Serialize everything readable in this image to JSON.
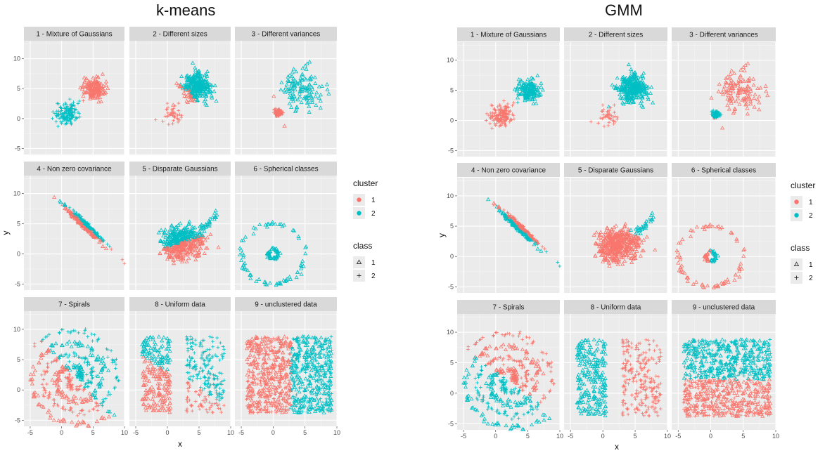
{
  "titles": {
    "left": "k-means",
    "right": "GMM"
  },
  "colors": {
    "cluster1": "#F8766D",
    "cluster2": "#00BFC4",
    "panel": "#EBEBEB",
    "strip": "#D9D9D9",
    "grid": "#FFFFFF"
  },
  "chart_data": [
    {
      "type": "scatter",
      "title": "k-means",
      "xlabel": "x",
      "ylabel": "y",
      "xlim": [
        -6,
        10
      ],
      "ylim": [
        -6,
        13
      ],
      "x_ticks": [
        "-5",
        "0",
        "5",
        "10"
      ],
      "y_ticks": [
        "-5",
        "0",
        "5",
        "10"
      ],
      "panels": [
        {
          "label": "1 - Mixture of Gaussians",
          "generator": "mixture",
          "assign": "kmeans"
        },
        {
          "label": "2 - Different sizes",
          "generator": "sizes",
          "assign": "kmeans"
        },
        {
          "label": "3 - Different variances",
          "generator": "variances",
          "assign": "kmeans"
        },
        {
          "label": "4 - Non zero covariance",
          "generator": "covariance",
          "assign": "kmeans"
        },
        {
          "label": "5 - Disparate Gaussians",
          "generator": "disparate",
          "assign": "kmeans"
        },
        {
          "label": "6 - Spherical classes",
          "generator": "spherical",
          "assign": "kmeans"
        },
        {
          "label": "7 - Spirals",
          "generator": "spirals",
          "assign": "kmeans"
        },
        {
          "label": "8 - Uniform data",
          "generator": "uniform",
          "assign": "kmeans"
        },
        {
          "label": "9 - unclustered data",
          "generator": "unclustered",
          "assign": "kmeans"
        }
      ],
      "legend": {
        "cluster_title": "cluster",
        "cluster_entries": [
          "1",
          "2"
        ],
        "class_title": "class",
        "class_entries": [
          {
            "label": "1",
            "shape": "triangle"
          },
          {
            "label": "2",
            "shape": "plus"
          }
        ],
        "placement": "right"
      }
    },
    {
      "type": "scatter",
      "title": "GMM",
      "xlabel": "x",
      "ylabel": "y",
      "xlim": [
        -6,
        10
      ],
      "ylim": [
        -6,
        13
      ],
      "x_ticks": [
        "-5",
        "0",
        "5",
        "10"
      ],
      "y_ticks": [
        "-5",
        "0",
        "5",
        "10"
      ],
      "panels": [
        {
          "label": "1 - Mixture of Gaussians",
          "generator": "mixture",
          "assign": "gmm"
        },
        {
          "label": "2 - Different sizes",
          "generator": "sizes",
          "assign": "gmm"
        },
        {
          "label": "3 - Different variances",
          "generator": "variances",
          "assign": "gmm"
        },
        {
          "label": "4 - Non zero covariance",
          "generator": "covariance",
          "assign": "gmm"
        },
        {
          "label": "5 - Disparate Gaussians",
          "generator": "disparate",
          "assign": "gmm"
        },
        {
          "label": "6 - Spherical classes",
          "generator": "spherical",
          "assign": "gmm"
        },
        {
          "label": "7 - Spirals",
          "generator": "spirals",
          "assign": "gmm"
        },
        {
          "label": "8 - Uniform data",
          "generator": "uniform",
          "assign": "gmm"
        },
        {
          "label": "9 - unclustered data",
          "generator": "unclustered",
          "assign": "gmm"
        }
      ],
      "legend": {
        "cluster_title": "cluster",
        "cluster_entries": [
          "1",
          "2"
        ],
        "class_title": "class",
        "class_entries": [
          {
            "label": "1",
            "shape": "triangle"
          },
          {
            "label": "2",
            "shape": "plus"
          }
        ],
        "placement": "right"
      }
    }
  ]
}
